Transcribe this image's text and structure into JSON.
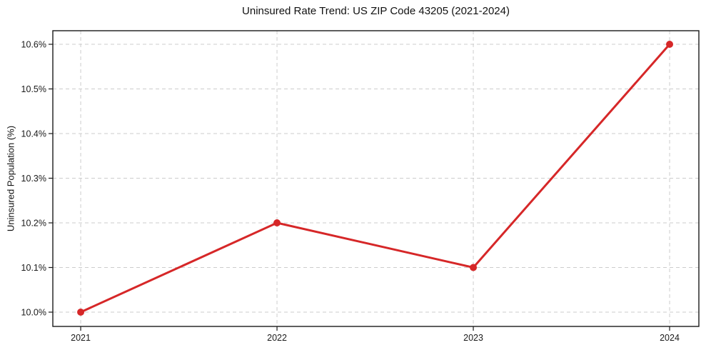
{
  "chart_data": {
    "type": "line",
    "title": "Uninsured Rate Trend: US ZIP Code 43205 (2021-2024)",
    "xlabel": "",
    "ylabel": "Uninsured Population (%)",
    "x": [
      2021,
      2022,
      2023,
      2024
    ],
    "x_tick_labels": [
      "2021",
      "2022",
      "2023",
      "2024"
    ],
    "values": [
      10.0,
      10.2,
      10.1,
      10.6
    ],
    "y_ticks": [
      10.0,
      10.1,
      10.2,
      10.3,
      10.4,
      10.5,
      10.6
    ],
    "y_tick_labels": [
      "10.0%",
      "10.1%",
      "10.2%",
      "10.3%",
      "10.4%",
      "10.5%",
      "10.6%"
    ],
    "xlim": [
      2020.858,
      2024.149
    ],
    "ylim": [
      9.968,
      10.6304
    ],
    "grid": true,
    "legend": "none",
    "marker": "circle",
    "line_color": "#d62728",
    "grid_color": "#cccccc",
    "axis_color": "#1a1a1a"
  }
}
